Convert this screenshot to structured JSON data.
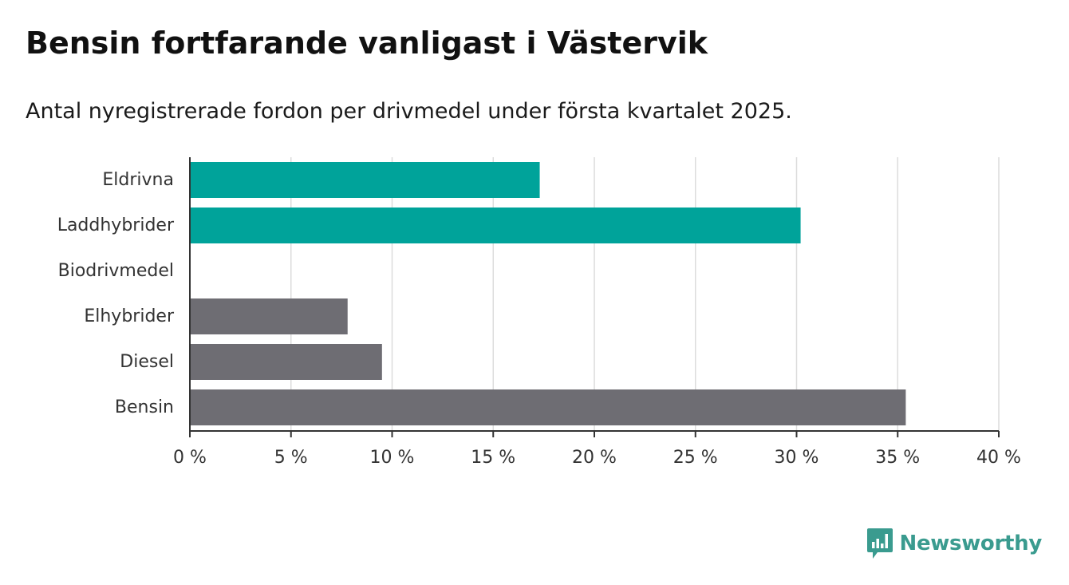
{
  "title": "Bensin fortfarande vanligast i Västervik",
  "subtitle": "Antal nyregistrerade fordon per drivmedel under första kvartalet 2025.",
  "brand": {
    "name": "Newsworthy",
    "color": "#3a9b8f",
    "icon": "bar-chart-icon"
  },
  "chart_data": {
    "type": "bar",
    "orientation": "horizontal",
    "categories": [
      "Eldrivna",
      "Laddhybrider",
      "Biodrivmedel",
      "Elhybrider",
      "Diesel",
      "Bensin"
    ],
    "values": [
      17.3,
      30.2,
      0,
      7.8,
      9.5,
      35.4
    ],
    "colors": [
      "#00a39a",
      "#00a39a",
      "#00a39a",
      "#6e6d73",
      "#6e6d73",
      "#6e6d73"
    ],
    "xlim": [
      0,
      40
    ],
    "xticks": [
      0,
      5,
      10,
      15,
      20,
      25,
      30,
      35,
      40
    ],
    "tick_labels": [
      "0 %",
      "5 %",
      "10 %",
      "15 %",
      "20 %",
      "25 %",
      "30 %",
      "35 %",
      "40 %"
    ],
    "xlabel": "",
    "ylabel": "",
    "grid": true
  }
}
